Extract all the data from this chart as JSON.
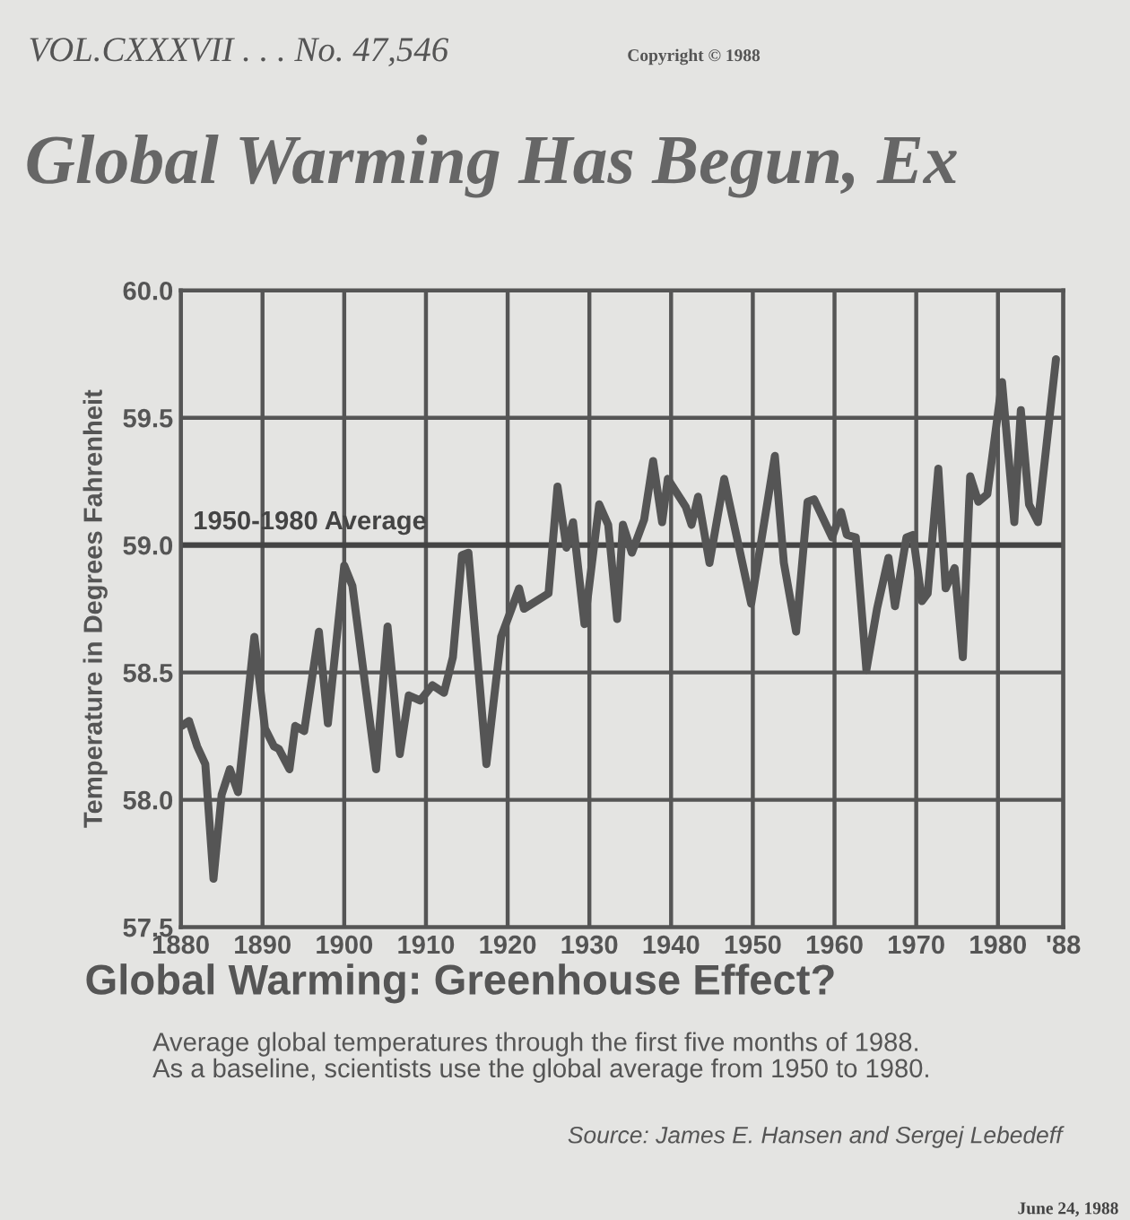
{
  "chart_data": {
    "type": "line",
    "title": "Global Warming: Greenhouse Effect?",
    "subtitle": "Average global temperatures through the first five months of 1988.\nAs a baseline, scientists use the global average from 1950 to 1980.",
    "ylabel": "Temperature in Degrees Fahrenheit",
    "annotations": [
      "VOL.CXXXVII . . . No. 47,546",
      "Copyright © 1988",
      "Global Warming Has Begun, Ex",
      "Source: James E. Hansen and Sergej Lebedeff",
      "June 24, 1988"
    ],
    "series": [
      {
        "color": "#555555",
        "x": [
          1880.1,
          1881,
          1882,
          1883,
          1884,
          1885,
          1886,
          1887,
          1889,
          1890.3,
          1891.4,
          1892,
          1893.3,
          1894,
          1895.1,
          1896.9,
          1898,
          1900,
          1901,
          1903.9,
          1905.3,
          1906.8,
          1907.9,
          1909.3,
          1910.8,
          1912.2,
          1913.3,
          1914.4,
          1915.2,
          1917.4,
          1919.2,
          1921.4,
          1922,
          1925,
          1926.1,
          1927.2,
          1928,
          1929.4,
          1931.2,
          1932.3,
          1933.4,
          1934.1,
          1935.2,
          1936.7,
          1937.8,
          1938.9,
          1939.6,
          1941.8,
          1942.5,
          1943.3,
          1944.7,
          1946.5,
          1949.8,
          1952.7,
          1953.8,
          1955.3,
          1956.7,
          1957.5,
          1959.7,
          1960.8,
          1961.5,
          1962.6,
          1963.9,
          1965.2,
          1966.6,
          1967.4,
          1968.8,
          1969.6,
          1970.7,
          1971.4,
          1972.7,
          1973.6,
          1974.7,
          1975.7,
          1976.6,
          1977.6,
          1978.7,
          1980.5,
          1982,
          1982.8,
          1983.8,
          1984.9,
          1987.1
        ],
        "values": [
          58.29,
          58.31,
          58.21,
          58.14,
          57.69,
          58.02,
          58.12,
          58.03,
          58.64,
          58.28,
          58.21,
          58.2,
          58.12,
          58.29,
          58.27,
          58.66,
          58.3,
          58.92,
          58.84,
          58.12,
          58.68,
          58.18,
          58.41,
          58.39,
          58.45,
          58.42,
          58.56,
          58.96,
          58.97,
          58.14,
          58.64,
          58.83,
          58.75,
          58.81,
          59.23,
          58.99,
          59.09,
          58.69,
          59.16,
          59.08,
          58.71,
          59.08,
          58.97,
          59.1,
          59.33,
          59.09,
          59.26,
          59.15,
          59.08,
          59.19,
          58.93,
          59.26,
          58.77,
          59.35,
          58.93,
          58.66,
          59.17,
          59.18,
          59.03,
          59.13,
          59.04,
          59.03,
          58.51,
          58.75,
          58.95,
          58.76,
          59.03,
          59.04,
          58.78,
          58.81,
          59.3,
          58.83,
          58.91,
          58.56,
          59.27,
          59.17,
          59.2,
          59.64,
          59.09,
          59.53,
          59.16,
          59.09,
          59.73
        ]
      }
    ],
    "xlim": [
      1880,
      1988
    ],
    "xticks": [
      1880,
      1890,
      1900,
      1910,
      1920,
      1930,
      1940,
      1950,
      1960,
      1970,
      1980,
      {
        "value": 1988,
        "label": "'88"
      }
    ],
    "ylim": [
      57.5,
      60.0
    ],
    "yticks": [
      {
        "value": 57.5,
        "label": "57.5"
      },
      {
        "value": 58.0,
        "label": "58.0"
      },
      {
        "value": 58.5,
        "label": "58.5"
      },
      {
        "value": 59.0,
        "label": "59.0"
      },
      {
        "value": 59.5,
        "label": "59.5"
      },
      {
        "value": 60.0,
        "label": "60.0"
      }
    ],
    "ref_lines": [
      {
        "axis": "y",
        "value": 59.0,
        "label": "1950-1980 Average",
        "color": "#444444"
      }
    ],
    "grid": true,
    "line_style": "solid",
    "marker": "none"
  }
}
